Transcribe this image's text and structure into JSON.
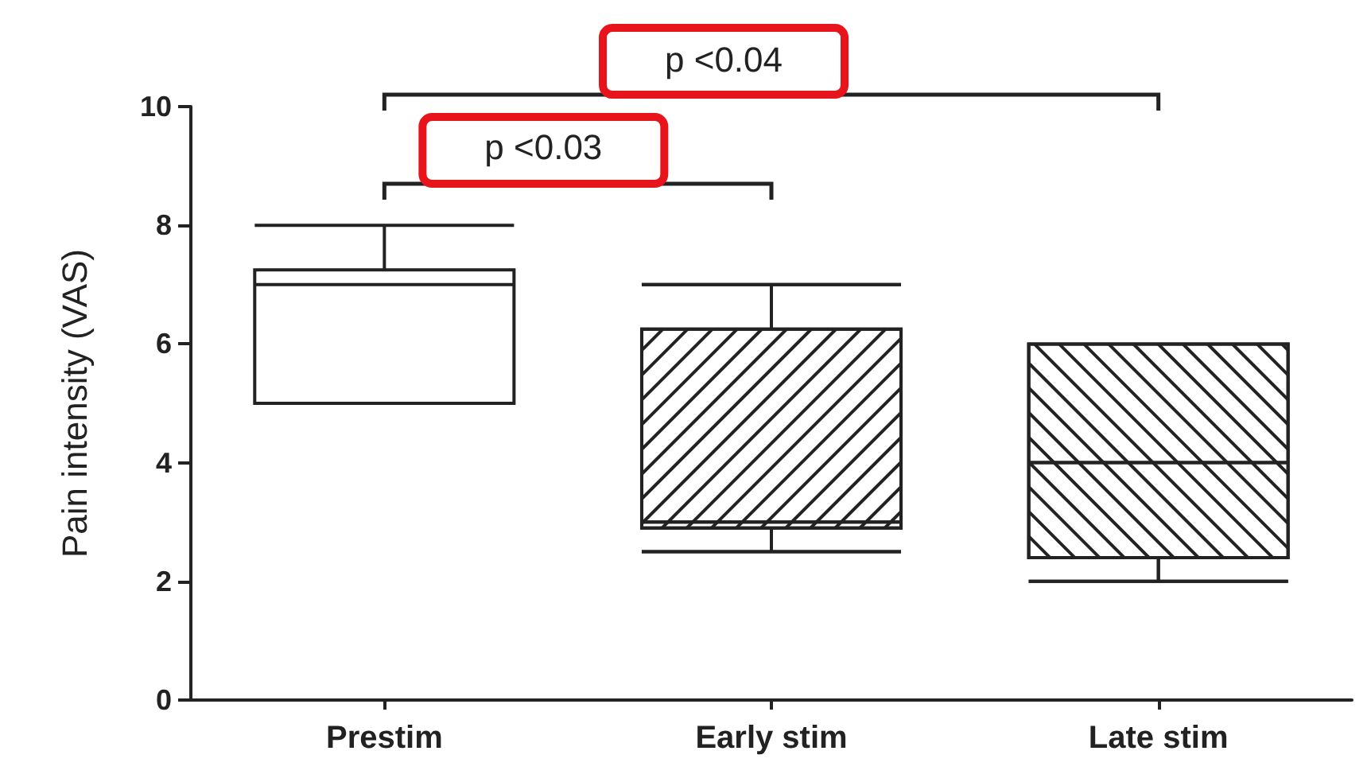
{
  "chart_data": {
    "type": "box",
    "ylabel": "Pain intensity (VAS)",
    "categories": [
      "Prestim",
      "Early stim",
      "Late stim"
    ],
    "boxes": [
      {
        "low": 5,
        "q1": 5,
        "median": 7,
        "q3": 7.25,
        "high": 8
      },
      {
        "low": 2.5,
        "q1": 2.9,
        "median": 3,
        "q3": 6.25,
        "high": 7
      },
      {
        "low": 2,
        "q1": 2.4,
        "median": 4,
        "q3": 6,
        "high": 6
      }
    ],
    "ylim": [
      0,
      10
    ],
    "yticks": [
      0,
      2,
      4,
      6,
      8,
      10
    ],
    "grid": false,
    "annotations": [
      "p <0.03",
      "p <0.04"
    ]
  }
}
